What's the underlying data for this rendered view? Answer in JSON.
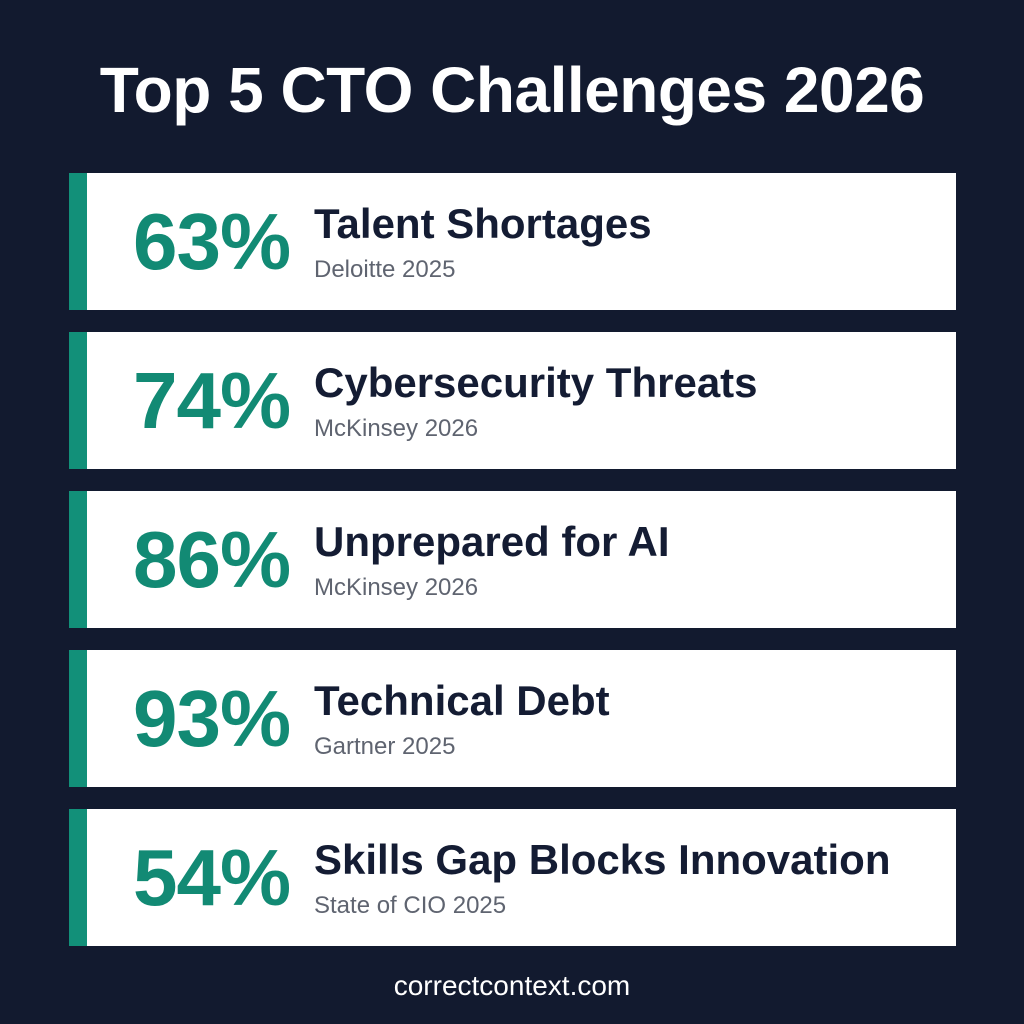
{
  "title": "Top 5 CTO Challenges 2026",
  "accent_color": "#129079",
  "background_color": "#121a2f",
  "challenges": [
    {
      "percent": "63%",
      "label": "Talent Shortages",
      "source": "Deloitte 2025"
    },
    {
      "percent": "74%",
      "label": "Cybersecurity Threats",
      "source": "McKinsey 2026"
    },
    {
      "percent": "86%",
      "label": "Unprepared for AI",
      "source": "McKinsey 2026"
    },
    {
      "percent": "93%",
      "label": "Technical Debt",
      "source": "Gartner 2025"
    },
    {
      "percent": "54%",
      "label": "Skills Gap Blocks Innovation",
      "source": "State of CIO 2025"
    }
  ],
  "footer": "correctcontext.com"
}
